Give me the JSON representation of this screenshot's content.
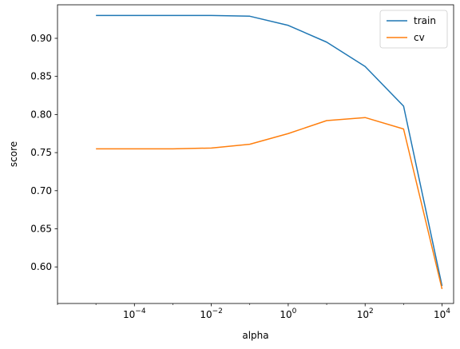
{
  "chart_data": {
    "type": "line",
    "xlabel": "alpha",
    "ylabel": "score",
    "xscale": "log",
    "xlim": [
      1e-06,
      20000
    ],
    "ylim": [
      0.552,
      0.944
    ],
    "x": [
      1e-05,
      0.0001,
      0.001,
      0.01,
      0.1,
      1,
      10,
      100,
      1000,
      10000
    ],
    "x_ticks": [
      {
        "value": 0.0001,
        "base": "10",
        "exp": "−4"
      },
      {
        "value": 0.01,
        "base": "10",
        "exp": "−2"
      },
      {
        "value": 1,
        "base": "10",
        "exp": "0"
      },
      {
        "value": 100,
        "base": "10",
        "exp": "2"
      },
      {
        "value": 10000,
        "base": "10",
        "exp": "4"
      }
    ],
    "y_ticks": [
      "0.60",
      "0.65",
      "0.70",
      "0.75",
      "0.80",
      "0.85",
      "0.90"
    ],
    "grid": false,
    "legend_position": "top-right",
    "series": [
      {
        "name": "train",
        "color": "#1f77b4",
        "values": [
          0.93,
          0.93,
          0.93,
          0.93,
          0.929,
          0.917,
          0.895,
          0.863,
          0.811,
          0.575
        ]
      },
      {
        "name": "cv",
        "color": "#ff7f0e",
        "values": [
          0.755,
          0.755,
          0.755,
          0.756,
          0.761,
          0.775,
          0.792,
          0.796,
          0.781,
          0.571
        ]
      }
    ]
  }
}
